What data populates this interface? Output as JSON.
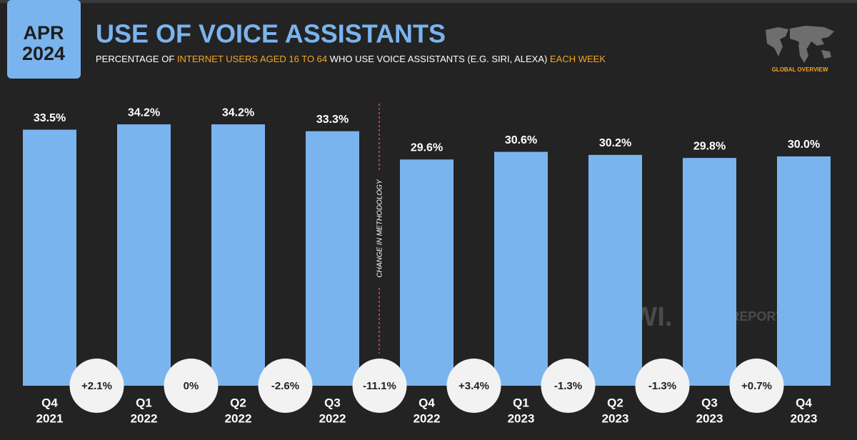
{
  "badge": {
    "month": "APR",
    "year": "2024"
  },
  "chart_data": {
    "type": "bar",
    "title": "USE OF VOICE ASSISTANTS",
    "subtitle": [
      "PERCENTAGE OF ",
      "INTERNET USERS AGED 16 TO 64",
      " WHO USE VOICE ASSISTANTS (E.G. SIRI, ALEXA) ",
      "EACH WEEK"
    ],
    "categories": [
      [
        "Q4",
        "2021"
      ],
      [
        "Q1",
        "2022"
      ],
      [
        "Q2",
        "2022"
      ],
      [
        "Q3",
        "2022"
      ],
      [
        "Q4",
        "2022"
      ],
      [
        "Q1",
        "2023"
      ],
      [
        "Q2",
        "2023"
      ],
      [
        "Q3",
        "2023"
      ],
      [
        "Q4",
        "2023"
      ]
    ],
    "values": [
      33.5,
      34.2,
      34.2,
      33.3,
      29.6,
      30.6,
      30.2,
      29.8,
      30.0
    ],
    "value_labels": [
      "33.5%",
      "34.2%",
      "34.2%",
      "33.3%",
      "29.6%",
      "30.6%",
      "30.2%",
      "29.8%",
      "30.0%"
    ],
    "color": "#7ab4ef",
    "ylim": [
      0,
      40
    ],
    "changes": {
      "values": [
        2.1,
        0,
        -2.6,
        -11.1,
        3.4,
        -1.3,
        -1.3,
        0.7
      ],
      "value_labels": [
        "+2.1%",
        "0%",
        "-2.6%",
        "-11.1%",
        "+3.4%",
        "-1.3%",
        "-1.3%",
        "+0.7%"
      ]
    },
    "annotation": "CHANGE IN METHODOLOGY",
    "logo_label": "GLOBAL OVERVIEW",
    "watermarks": [
      "GWI.",
      "DATAREPORTAL"
    ]
  }
}
